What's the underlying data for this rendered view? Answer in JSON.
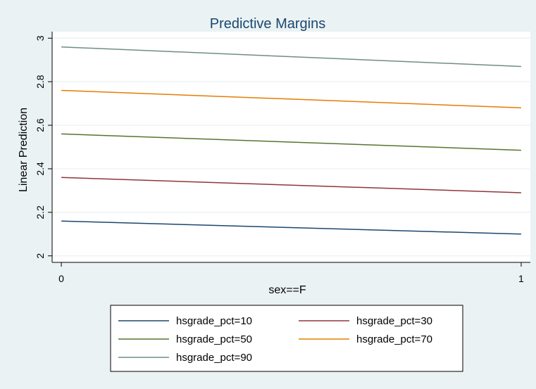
{
  "chart_data": {
    "type": "line",
    "title": "Predictive Margins",
    "xlabel": "sex==F",
    "ylabel": "Linear Prediction",
    "x": [
      0,
      1
    ],
    "xticks": [
      "0",
      "1"
    ],
    "xlim": [
      -0.02,
      1.02
    ],
    "yticks": [
      "2",
      "2.2",
      "2.4",
      "2.6",
      "2.8",
      "3"
    ],
    "ylim": [
      1.97,
      3.03
    ],
    "grid": true,
    "legend_position": "bottom",
    "series": [
      {
        "name": "hsgrade_pct=10",
        "color": "#1a476f",
        "values": [
          2.16,
          2.1
        ]
      },
      {
        "name": "hsgrade_pct=30",
        "color": "#90353b",
        "values": [
          2.36,
          2.29
        ]
      },
      {
        "name": "hsgrade_pct=50",
        "color": "#55752f",
        "values": [
          2.56,
          2.485
        ]
      },
      {
        "name": "hsgrade_pct=70",
        "color": "#e37e00",
        "values": [
          2.76,
          2.68
        ]
      },
      {
        "name": "hsgrade_pct=90",
        "color": "#6e8e84",
        "values": [
          2.96,
          2.87
        ]
      }
    ]
  }
}
